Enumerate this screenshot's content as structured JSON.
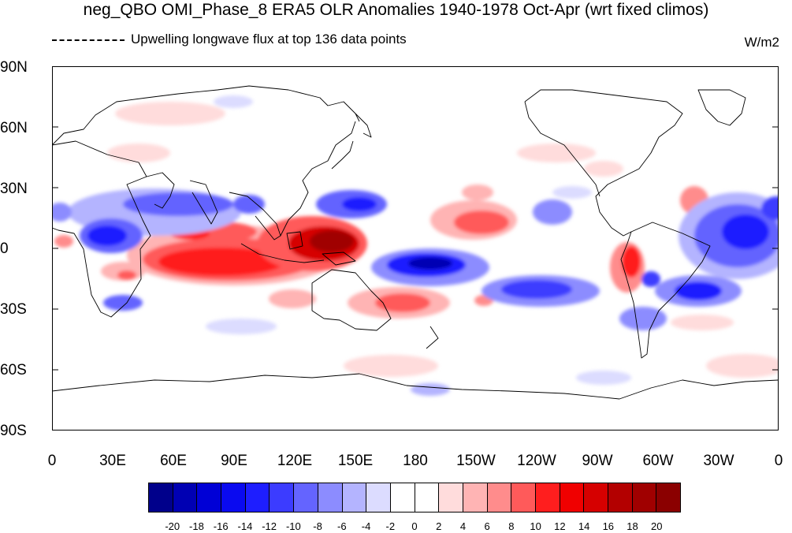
{
  "title": "neg_QBO OMI_Phase_8 ERA5 OLR Anomalies 1940-1978 Oct-Apr (wrt fixed climos)",
  "subtitle": "Upwelling longwave flux at top  136 data points",
  "units": "W/m2",
  "y_labels": [
    "90N",
    "60N",
    "30N",
    "0",
    "30S",
    "60S",
    "90S"
  ],
  "x_labels": [
    "0",
    "30E",
    "60E",
    "90E",
    "120E",
    "150E",
    "180",
    "150W",
    "120W",
    "90W",
    "60W",
    "30W",
    "0"
  ],
  "colorbar": {
    "labels": [
      "-20",
      "-18",
      "-16",
      "-14",
      "-12",
      "-10",
      "-8",
      "-6",
      "-4",
      "-2",
      "0",
      "2",
      "4",
      "6",
      "8",
      "10",
      "12",
      "14",
      "16",
      "18",
      "20"
    ],
    "colors": [
      "#00008b",
      "#0000b3",
      "#0000d6",
      "#0a0af0",
      "#1e1eff",
      "#3c3cff",
      "#6464ff",
      "#8c8cff",
      "#b4b4ff",
      "#dcdcff",
      "#ffffff",
      "#ffffff",
      "#ffdcdc",
      "#ffb4b4",
      "#ff8c8c",
      "#ff5a5a",
      "#ff1e1e",
      "#f00000",
      "#d60000",
      "#b30000",
      "#a00000",
      "#8b0000"
    ]
  }
}
